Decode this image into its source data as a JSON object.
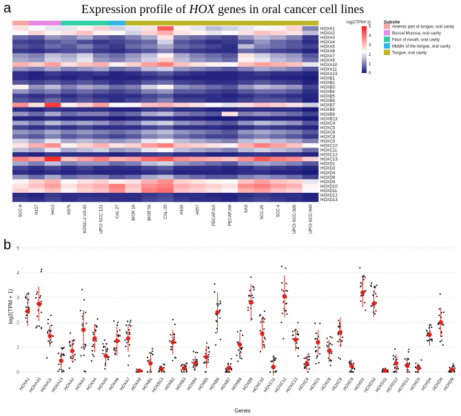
{
  "panel_a": {
    "letter": "a",
    "title_prefix": "Expression profile of ",
    "title_italic": "HOX",
    "title_suffix": " genes in oral cancer cell lines"
  },
  "panel_b": {
    "letter": "b"
  },
  "chart_data": [
    {
      "type": "heatmap",
      "title": "Expression profile of HOX genes in oral cancer cell lines",
      "colorbar_title": "log2(TPM+1)",
      "colorbar_ticks": [
        "5",
        "4",
        "3",
        "2",
        "1",
        "0"
      ],
      "colorbar_range": [
        0,
        5
      ],
      "colors": {
        "low": "#1a1a7a",
        "mid": "#ffffff",
        "high": "#ff1a1a"
      },
      "subtite_legend_title": "Subsite",
      "subsites": [
        {
          "name": "Anterior part of tongue, oral cavity",
          "color": "#f4a6a0"
        },
        {
          "name": "Buccal Mucosa, oral cavity",
          "color": "#e889e6"
        },
        {
          "name": "Floor of mouth, oral cavity",
          "color": "#33cfa6"
        },
        {
          "name": "Middle of the tongue, oral cavity",
          "color": "#33b6ea"
        },
        {
          "name": "Tongue, oral cavity",
          "color": "#bdb52a"
        }
      ],
      "columns": [
        "SCC-9",
        "H157",
        "H413",
        "H376",
        "KOSC-2 cl3-43",
        "UPCI-SCC-131",
        "CAL 27",
        "BICR 16",
        "BICR 56",
        "CAL-33",
        "H103",
        "H357",
        "PECAPJ15",
        "PECAPJ49",
        "SAS",
        "SCC-25",
        "SCC-4",
        "UPCI-SCC-026",
        "UPCI-SCC-040"
      ],
      "column_subsite": [
        0,
        1,
        1,
        2,
        2,
        2,
        3,
        4,
        4,
        4,
        4,
        4,
        4,
        4,
        4,
        4,
        4,
        4,
        4
      ],
      "rows": [
        "HOXA1",
        "HOXA2",
        "HOXA3",
        "HOXA4",
        "HOXA5",
        "HOXA6",
        "HOXA7",
        "HOXA9",
        "HOXA10",
        "HOXA11",
        "HOXA13",
        "HOXB1",
        "HOXB2",
        "HOXB3",
        "HOXB4",
        "HOXB5",
        "HOXB6",
        "HOXB7",
        "HOXB8",
        "HOXB9",
        "HOXB13",
        "HOXC4",
        "HOXC5",
        "HOXC6",
        "HOXC8",
        "HOXC9",
        "HOXC10",
        "HOXC11",
        "HOXC12",
        "HOXC13",
        "HOXD1",
        "HOXD3",
        "HOXD4",
        "HOXD8",
        "HOXD9",
        "HOXD10",
        "HOXD11",
        "HOXD12",
        "HOXD13"
      ],
      "values": [
        [
          2.6,
          2.2,
          2.0,
          2.0,
          2.4,
          2.8,
          1.8,
          2.0,
          2.6,
          4.2,
          2.4,
          2.0,
          1.6,
          1.8,
          2.0,
          2.2,
          2.4,
          2.8,
          1.0
        ],
        [
          2.2,
          2.8,
          2.4,
          2.6,
          3.0,
          2.4,
          2.2,
          1.8,
          2.8,
          3.2,
          2.6,
          2.4,
          2.0,
          2.2,
          2.6,
          3.0,
          2.8,
          2.6,
          1.6
        ],
        [
          0.8,
          0.6,
          1.2,
          1.0,
          1.4,
          0.8,
          0.6,
          1.0,
          1.4,
          2.6,
          1.0,
          0.8,
          0.6,
          0.4,
          1.2,
          1.6,
          1.4,
          1.0,
          0.3
        ],
        [
          0.4,
          0.3,
          0.6,
          0.8,
          0.5,
          0.3,
          0.4,
          0.6,
          0.8,
          1.8,
          0.6,
          0.4,
          0.2,
          0.3,
          0.6,
          1.2,
          0.8,
          0.6,
          0.2
        ],
        [
          0.6,
          0.4,
          0.8,
          0.6,
          1.0,
          0.5,
          0.3,
          0.8,
          1.0,
          1.4,
          0.8,
          0.6,
          0.4,
          0.2,
          1.6,
          1.0,
          0.8,
          0.6,
          0.4
        ],
        [
          0.3,
          0.2,
          0.4,
          0.5,
          0.6,
          0.3,
          0.2,
          0.4,
          0.6,
          1.0,
          0.4,
          0.3,
          0.2,
          0.2,
          0.8,
          0.6,
          0.4,
          0.3,
          0.1
        ],
        [
          1.2,
          1.0,
          1.6,
          1.4,
          1.8,
          1.0,
          0.8,
          1.2,
          1.6,
          2.4,
          1.4,
          1.0,
          0.8,
          0.6,
          2.6,
          1.8,
          1.4,
          1.2,
          0.6
        ],
        [
          1.4,
          1.2,
          1.8,
          1.6,
          2.0,
          1.2,
          1.0,
          1.4,
          1.8,
          2.8,
          1.6,
          1.2,
          1.0,
          0.8,
          2.4,
          2.0,
          1.6,
          1.4,
          0.8
        ],
        [
          3.2,
          2.8,
          3.4,
          2.6,
          3.0,
          3.2,
          2.4,
          2.8,
          3.4,
          3.8,
          3.0,
          2.6,
          2.4,
          2.2,
          3.0,
          3.4,
          3.2,
          3.0,
          2.0
        ],
        [
          1.2,
          1.0,
          1.4,
          1.0,
          1.2,
          1.4,
          0.8,
          1.0,
          1.6,
          1.8,
          1.2,
          1.0,
          0.8,
          0.6,
          1.0,
          1.4,
          1.2,
          1.0,
          0.6
        ],
        [
          0.2,
          0.1,
          0.3,
          0.2,
          0.2,
          0.3,
          0.1,
          0.2,
          0.4,
          0.6,
          0.3,
          0.2,
          0.1,
          0.1,
          0.2,
          0.3,
          0.2,
          0.2,
          0.1
        ],
        [
          0.2,
          0.1,
          0.2,
          0.1,
          0.2,
          0.1,
          0.1,
          0.1,
          0.2,
          0.3,
          0.1,
          0.1,
          0.1,
          0.1,
          0.2,
          0.2,
          0.1,
          0.1,
          0.0
        ],
        [
          0.6,
          0.4,
          0.6,
          0.4,
          0.6,
          0.4,
          0.2,
          0.3,
          0.6,
          0.8,
          0.4,
          0.3,
          0.2,
          0.2,
          0.4,
          0.6,
          0.4,
          0.3,
          0.1
        ],
        [
          2.4,
          1.2,
          1.6,
          1.0,
          1.4,
          1.2,
          0.8,
          1.0,
          1.8,
          2.4,
          1.2,
          1.0,
          0.8,
          0.6,
          1.2,
          1.6,
          1.4,
          1.2,
          0.4
        ],
        [
          1.2,
          0.8,
          1.0,
          0.6,
          0.8,
          0.6,
          0.4,
          0.6,
          1.0,
          1.2,
          0.6,
          0.6,
          0.4,
          0.3,
          0.6,
          0.8,
          0.8,
          0.6,
          0.2
        ],
        [
          0.4,
          0.2,
          0.4,
          0.2,
          0.4,
          0.2,
          0.2,
          0.2,
          0.4,
          0.6,
          0.2,
          0.2,
          0.2,
          0.1,
          0.2,
          0.4,
          0.3,
          0.2,
          0.1
        ],
        [
          0.6,
          0.4,
          0.8,
          0.4,
          0.6,
          0.4,
          0.2,
          0.4,
          0.6,
          1.0,
          0.4,
          0.4,
          0.2,
          0.2,
          0.4,
          0.6,
          0.6,
          0.4,
          0.1
        ],
        [
          3.6,
          2.6,
          4.6,
          2.4,
          2.8,
          3.4,
          2.2,
          2.4,
          3.0,
          3.2,
          2.8,
          2.6,
          2.2,
          2.0,
          2.6,
          3.0,
          2.8,
          2.6,
          1.8
        ],
        [
          0.2,
          0.1,
          0.3,
          0.2,
          0.2,
          0.2,
          0.1,
          0.1,
          0.3,
          0.4,
          0.2,
          0.2,
          0.1,
          0.1,
          0.2,
          0.2,
          0.2,
          0.2,
          0.0
        ],
        [
          1.2,
          0.8,
          1.4,
          0.8,
          1.0,
          1.0,
          0.6,
          0.8,
          1.4,
          1.6,
          1.0,
          0.8,
          0.6,
          2.6,
          1.0,
          1.2,
          1.0,
          0.8,
          0.4
        ],
        [
          0.1,
          0.1,
          0.2,
          0.1,
          0.1,
          0.1,
          0.0,
          0.1,
          0.2,
          0.2,
          0.1,
          0.1,
          0.0,
          0.0,
          0.1,
          0.1,
          0.1,
          0.1,
          0.0
        ],
        [
          1.4,
          1.0,
          1.6,
          1.2,
          1.4,
          1.2,
          0.8,
          1.0,
          1.6,
          1.8,
          1.2,
          1.0,
          0.8,
          0.6,
          1.2,
          1.6,
          1.4,
          1.2,
          0.6
        ],
        [
          0.4,
          0.2,
          0.4,
          0.2,
          0.4,
          0.2,
          0.2,
          0.2,
          0.4,
          0.6,
          0.2,
          0.2,
          0.2,
          0.1,
          0.2,
          0.4,
          0.3,
          0.2,
          0.1
        ],
        [
          1.2,
          1.0,
          1.4,
          1.0,
          1.2,
          1.0,
          0.8,
          1.0,
          1.4,
          1.6,
          1.2,
          1.0,
          0.8,
          0.6,
          1.2,
          1.4,
          1.2,
          1.0,
          0.6
        ],
        [
          0.8,
          0.6,
          1.0,
          0.6,
          0.8,
          0.6,
          0.4,
          0.6,
          1.0,
          1.2,
          0.8,
          0.6,
          0.4,
          0.4,
          0.8,
          1.0,
          0.8,
          0.6,
          0.3
        ],
        [
          1.8,
          1.4,
          2.0,
          1.4,
          1.6,
          1.4,
          1.2,
          1.4,
          2.0,
          2.2,
          1.6,
          1.4,
          1.2,
          1.0,
          1.6,
          1.8,
          1.6,
          1.4,
          1.0
        ],
        [
          2.6,
          3.2,
          3.6,
          2.4,
          2.8,
          3.2,
          2.6,
          2.8,
          3.4,
          3.8,
          3.0,
          2.8,
          2.6,
          2.4,
          3.2,
          3.8,
          3.4,
          3.0,
          2.2
        ],
        [
          1.6,
          1.4,
          2.0,
          1.4,
          1.6,
          1.8,
          1.2,
          1.4,
          2.0,
          2.2,
          1.6,
          1.4,
          1.2,
          1.0,
          1.6,
          1.8,
          1.6,
          1.4,
          0.8
        ],
        [
          0.2,
          0.1,
          0.3,
          0.2,
          0.2,
          0.2,
          0.1,
          0.2,
          0.3,
          0.4,
          0.2,
          0.2,
          0.1,
          0.1,
          0.2,
          0.3,
          0.2,
          0.2,
          0.1
        ],
        [
          3.8,
          3.4,
          4.8,
          3.0,
          3.4,
          3.8,
          3.2,
          3.4,
          4.0,
          4.2,
          3.6,
          3.4,
          3.2,
          3.0,
          3.6,
          4.2,
          3.8,
          3.6,
          2.8
        ],
        [
          1.4,
          1.0,
          1.6,
          1.0,
          1.2,
          1.2,
          0.8,
          1.0,
          1.6,
          1.8,
          1.2,
          1.0,
          0.8,
          0.6,
          1.2,
          1.4,
          1.2,
          1.0,
          0.6
        ],
        [
          0.4,
          0.2,
          0.4,
          0.2,
          0.4,
          0.2,
          0.2,
          0.2,
          0.4,
          0.6,
          0.2,
          0.2,
          0.2,
          0.1,
          0.2,
          0.4,
          0.3,
          0.2,
          0.1
        ],
        [
          0.2,
          0.1,
          0.2,
          0.1,
          0.2,
          0.1,
          0.1,
          0.1,
          0.2,
          0.3,
          0.1,
          0.1,
          0.1,
          0.1,
          0.2,
          0.2,
          0.1,
          0.1,
          0.0
        ],
        [
          1.2,
          0.8,
          1.4,
          0.8,
          1.0,
          1.0,
          0.6,
          0.8,
          1.4,
          1.6,
          1.0,
          0.8,
          0.6,
          0.6,
          1.0,
          1.2,
          1.0,
          0.8,
          0.4
        ],
        [
          2.4,
          2.8,
          3.2,
          2.2,
          2.6,
          2.8,
          2.4,
          2.6,
          3.2,
          3.6,
          2.8,
          2.6,
          2.4,
          2.2,
          3.0,
          3.4,
          3.0,
          2.8,
          2.0
        ],
        [
          2.6,
          3.0,
          3.4,
          2.6,
          3.0,
          3.2,
          3.8,
          3.0,
          3.6,
          3.8,
          3.2,
          3.0,
          2.8,
          2.6,
          3.6,
          3.8,
          3.4,
          3.2,
          2.4
        ],
        [
          2.8,
          2.6,
          3.0,
          2.4,
          2.8,
          3.0,
          3.6,
          2.8,
          3.8,
          4.0,
          3.0,
          2.8,
          2.6,
          2.4,
          3.2,
          3.4,
          3.0,
          2.8,
          2.2
        ],
        [
          0.2,
          0.1,
          0.3,
          0.2,
          0.2,
          0.2,
          0.2,
          0.2,
          0.3,
          0.4,
          0.2,
          0.2,
          0.1,
          0.1,
          0.2,
          0.3,
          0.2,
          0.2,
          0.1
        ],
        [
          0.3,
          0.2,
          0.4,
          0.2,
          0.3,
          0.3,
          0.2,
          0.2,
          0.4,
          0.5,
          0.3,
          0.2,
          0.2,
          0.1,
          0.3,
          0.4,
          0.3,
          0.2,
          0.1
        ]
      ]
    },
    {
      "type": "scatter",
      "xlabel": "Genes",
      "ylabel": "log2(TPM + 1)",
      "ylim": [
        0,
        5
      ],
      "yticks": [
        "0",
        "1",
        "2",
        "3",
        "4",
        "5"
      ],
      "grid": true,
      "categories": [
        "HOXA1",
        "HOXA10",
        "HOXA11",
        "HOXA13",
        "HOXA2",
        "HOXA3",
        "HOXA4",
        "HOXA5",
        "HOXA6",
        "HOXA7",
        "HOXA9",
        "HOXB1",
        "HOXB13",
        "HOXB2",
        "HOXB3",
        "HOXB4",
        "HOXB5",
        "HOXB6",
        "HOXB7",
        "HOXB8",
        "HOXB9",
        "HOXC10",
        "HOXC11",
        "HOXC12",
        "HOXC13",
        "HOXC4",
        "HOXC5",
        "HOXC6",
        "HOXC8",
        "HOXC9",
        "HOXD1",
        "HOXD10",
        "HOXD11",
        "HOXD12",
        "HOXD13",
        "HOXD3",
        "HOXD4",
        "HOXD8",
        "HOXD9"
      ],
      "means": [
        2.45,
        2.75,
        1.45,
        0.45,
        0.85,
        1.7,
        1.35,
        0.65,
        1.25,
        1.35,
        0.05,
        0.35,
        0.12,
        1.2,
        0.15,
        0.35,
        0.6,
        2.4,
        0.15,
        1.1,
        2.8,
        1.55,
        0.2,
        3.05,
        1.3,
        0.35,
        1.2,
        0.85,
        1.6,
        0.25,
        3.2,
        2.75,
        0.05,
        0.35,
        0.25,
        0.15,
        1.5,
        2.0,
        0.1
      ],
      "sd": [
        0.6,
        0.7,
        0.45,
        0.35,
        0.45,
        0.8,
        0.55,
        0.4,
        0.6,
        0.55,
        0.05,
        0.35,
        0.15,
        0.5,
        0.15,
        0.3,
        0.45,
        0.8,
        0.2,
        0.5,
        0.75,
        0.65,
        0.45,
        0.85,
        0.45,
        0.3,
        0.5,
        0.45,
        0.6,
        0.25,
        0.6,
        0.55,
        0.08,
        0.35,
        0.3,
        0.2,
        0.45,
        0.6,
        0.12
      ]
    }
  ]
}
